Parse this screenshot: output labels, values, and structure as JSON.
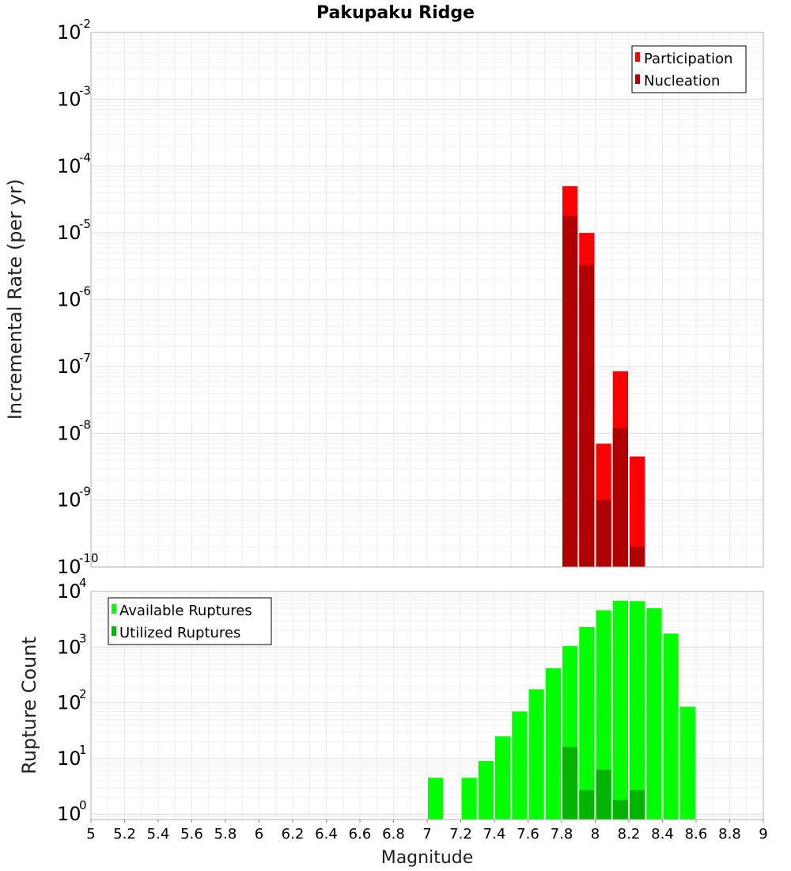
{
  "chart_data": [
    {
      "type": "bar",
      "title": "Pakupaku Ridge",
      "ylabel": "Incremental Rate (per yr)",
      "xlabel": "",
      "yscale": "log",
      "ylim": [
        1e-10,
        0.01
      ],
      "xlim": [
        5,
        9
      ],
      "y_tick_exponents": [
        -2,
        -3,
        -4,
        -5,
        -6,
        -7,
        -8,
        -9,
        -10
      ],
      "grid": true,
      "legend_position": "top-right",
      "bin_width": 0.1,
      "series": [
        {
          "name": "Participation",
          "color": "#ff0000",
          "x": [
            7.85,
            7.95,
            8.05,
            8.15,
            8.25
          ],
          "values": [
            5e-05,
            1e-05,
            7e-09,
            8.5e-08,
            4.5e-09
          ]
        },
        {
          "name": "Nucleation",
          "color": "#b00000",
          "x": [
            7.85,
            7.95,
            8.05,
            8.15,
            8.25
          ],
          "values": [
            1.8e-05,
            3.3e-06,
            1e-09,
            1.2e-08,
            2e-10
          ]
        }
      ]
    },
    {
      "type": "bar",
      "title": "",
      "ylabel": "Rupture Count",
      "xlabel": "Magnitude",
      "yscale": "log",
      "ylim": [
        0.8,
        10000
      ],
      "xlim": [
        5,
        9
      ],
      "x_ticks": [
        "5",
        "5.2",
        "5.4",
        "5.6",
        "5.8",
        "6",
        "6.2",
        "6.4",
        "6.6",
        "6.8",
        "7",
        "7.2",
        "7.4",
        "7.6",
        "7.8",
        "8",
        "8.2",
        "8.4",
        "8.6",
        "8.8",
        "9"
      ],
      "y_tick_exponents": [
        4,
        3,
        2,
        1,
        0
      ],
      "grid": true,
      "legend_position": "top-left",
      "bin_width": 0.1,
      "series": [
        {
          "name": "Available Ruptures",
          "color": "#00ff00",
          "x": [
            7.05,
            7.25,
            7.35,
            7.45,
            7.55,
            7.65,
            7.75,
            7.85,
            7.95,
            8.05,
            8.15,
            8.25,
            8.35,
            8.45,
            8.55
          ],
          "values": [
            4.5,
            4.5,
            9,
            25,
            70,
            175,
            420,
            1050,
            2300,
            4600,
            6800,
            6700,
            5000,
            1750,
            85
          ]
        },
        {
          "name": "Utilized Ruptures",
          "color": "#00b400",
          "x": [
            7.85,
            7.95,
            8.05,
            8.15,
            8.25
          ],
          "values": [
            16,
            2.7,
            6.3,
            1.8,
            2.7
          ]
        }
      ]
    }
  ]
}
